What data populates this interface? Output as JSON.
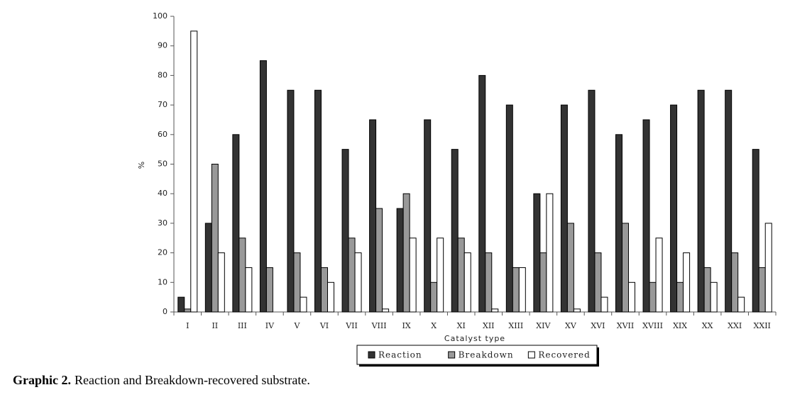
{
  "chart_data": {
    "type": "bar",
    "y_label": "%",
    "x_label": "Catalyst type",
    "caption_label": "Graphic 2.",
    "caption_text": "Reaction and Breakdown-recovered substrate.",
    "categories": [
      "I",
      "II",
      "III",
      "IV",
      "V",
      "VI",
      "VII",
      "VIII",
      "IX",
      "X",
      "XI",
      "XII",
      "XIII",
      "XIV",
      "XV",
      "XVI",
      "XVII",
      "XVIII",
      "XIX",
      "XX",
      "XXI",
      "XXII"
    ],
    "series": [
      {
        "name": "Reaction",
        "color": "#333333",
        "values": [
          5,
          30,
          60,
          85,
          75,
          75,
          55,
          65,
          35,
          65,
          55,
          80,
          70,
          40,
          70,
          75,
          60,
          65,
          70,
          75,
          75,
          55
        ]
      },
      {
        "name": "Breakdown",
        "color": "#999999",
        "values": [
          1,
          50,
          25,
          15,
          20,
          15,
          25,
          35,
          40,
          10,
          25,
          20,
          15,
          20,
          30,
          20,
          30,
          10,
          10,
          15,
          20,
          15
        ]
      },
      {
        "name": "Recovered",
        "color": "#ffffff",
        "values": [
          95,
          20,
          15,
          0,
          5,
          10,
          20,
          1,
          25,
          25,
          20,
          1,
          15,
          40,
          1,
          5,
          10,
          25,
          20,
          10,
          5,
          30
        ]
      }
    ],
    "ylim": [
      0,
      100
    ],
    "yticks": [
      0,
      10,
      20,
      30,
      40,
      50,
      60,
      70,
      80,
      90,
      100
    ],
    "legend": "bottom"
  }
}
